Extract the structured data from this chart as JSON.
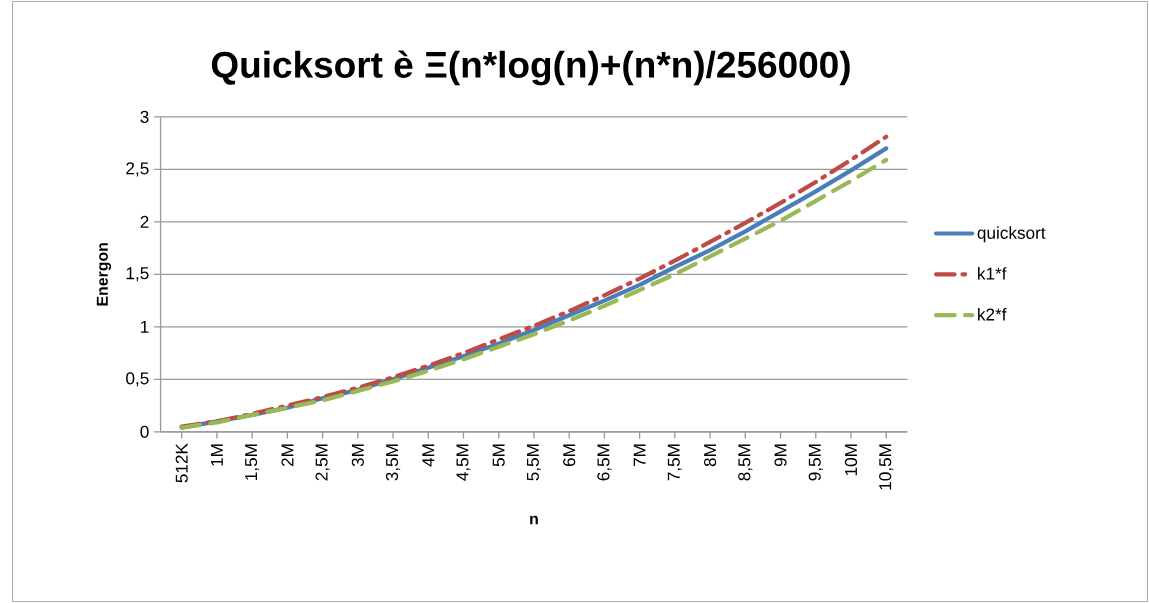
{
  "chart_data": {
    "type": "line",
    "title": "Quicksort è Ξ(n*log(n)+(n*n)/256000)",
    "xlabel": "n",
    "ylabel": "Energon",
    "categories": [
      "512K",
      "1M",
      "1,5M",
      "2M",
      "2,5M",
      "3M",
      "3,5M",
      "4M",
      "4,5M",
      "5M",
      "5,5M",
      "6M",
      "6,5M",
      "7M",
      "7,5M",
      "8M",
      "8,5M",
      "9M",
      "9,5M",
      "10M",
      "10,5M"
    ],
    "series": [
      {
        "name": "quicksort",
        "color": "#4a7ebb",
        "line_style": "solid",
        "values": [
          0.04,
          0.1,
          0.16,
          0.23,
          0.32,
          0.4,
          0.5,
          0.61,
          0.72,
          0.84,
          0.97,
          1.11,
          1.25,
          1.4,
          1.57,
          1.73,
          1.91,
          2.1,
          2.29,
          2.49,
          2.7
        ]
      },
      {
        "name": "k1*f",
        "color": "#be4b48",
        "line_style": "dashdot",
        "values": [
          0.05,
          0.1,
          0.17,
          0.25,
          0.33,
          0.42,
          0.52,
          0.63,
          0.75,
          0.88,
          1.01,
          1.15,
          1.3,
          1.46,
          1.63,
          1.81,
          1.99,
          2.18,
          2.38,
          2.59,
          2.81
        ]
      },
      {
        "name": "k2*f",
        "color": "#98b954",
        "line_style": "dashed",
        "values": [
          0.04,
          0.09,
          0.16,
          0.23,
          0.3,
          0.39,
          0.48,
          0.58,
          0.69,
          0.81,
          0.93,
          1.06,
          1.2,
          1.35,
          1.5,
          1.67,
          1.84,
          2.01,
          2.2,
          2.39,
          2.59
        ]
      }
    ],
    "ylim": [
      0,
      3
    ],
    "yticks": [
      0,
      {
        "value": 0.5,
        "label": "0,5"
      },
      1,
      {
        "value": 1.5,
        "label": "1,5"
      },
      2,
      {
        "value": 2.5,
        "label": "2,5"
      },
      3
    ],
    "grid": "y",
    "legend": "right",
    "marker": "none"
  }
}
